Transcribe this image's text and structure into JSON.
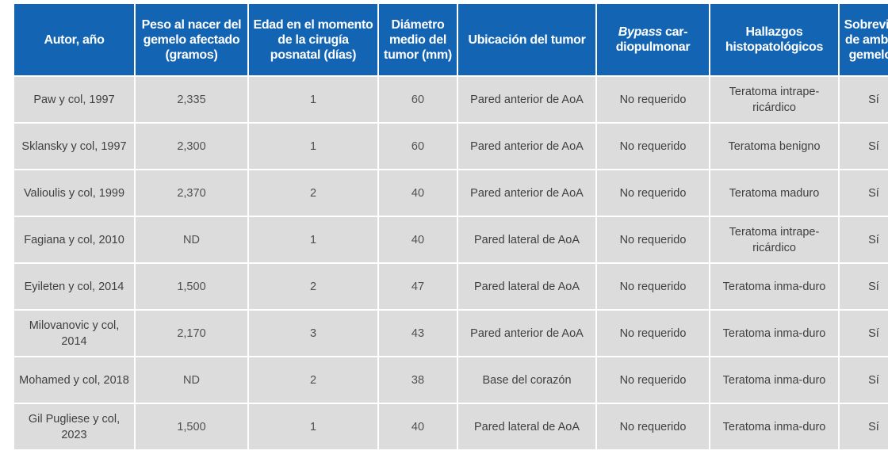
{
  "table": {
    "headers": [
      "Autor, año",
      "Peso al nacer del gemelo afectado (gramos)",
      "Edad en el momento de la cirugía posnatal (días)",
      "Diámetro medio del tumor (mm)",
      "Ubicación del tumor",
      "cardiopulmonar",
      "Hallazgos histopatológicos",
      "Sobrevida de ambos gemelos"
    ],
    "bypass_header_italic": "Bypass",
    "bypass_header_rest": " car-diopulmonar",
    "rows": [
      [
        "Paw y col, 1997",
        "2,335",
        "1",
        "60",
        "Pared anterior de AoA",
        "No requerido",
        "Teratoma intrape-ricárdico",
        "Sí"
      ],
      [
        "Sklansky y col, 1997",
        "2,300",
        "1",
        "60",
        "Pared anterior de AoA",
        "No requerido",
        "Teratoma benigno",
        "Sí"
      ],
      [
        "Valioulis y col, 1999",
        "2,370",
        "2",
        "40",
        "Pared anterior de AoA",
        "No requerido",
        "Teratoma maduro",
        "Sí"
      ],
      [
        "Fagiana y col, 2010",
        "ND",
        "1",
        "40",
        "Pared lateral de AoA",
        "No requerido",
        "Teratoma intrape-ricárdico",
        "Sí"
      ],
      [
        "Eyileten y col, 2014",
        "1,500",
        "2",
        "47",
        "Pared lateral de AoA",
        "No requerido",
        "Teratoma inma-duro",
        "Sí"
      ],
      [
        "Milovanovic y col, 2014",
        "2,170",
        "3",
        "43",
        "Pared anterior de AoA",
        "No requerido",
        "Teratoma inma-duro",
        "Sí"
      ],
      [
        "Mohamed y col, 2018",
        "ND",
        "2",
        "38",
        "Base del corazón",
        "No requerido",
        "Teratoma inma-duro",
        "Sí"
      ],
      [
        "Gil Pugliese y col, 2023",
        "1,500",
        "1",
        "40",
        "Pared lateral de AoA",
        "No requerido",
        "Teratoma inma-duro",
        "Sí"
      ]
    ]
  }
}
